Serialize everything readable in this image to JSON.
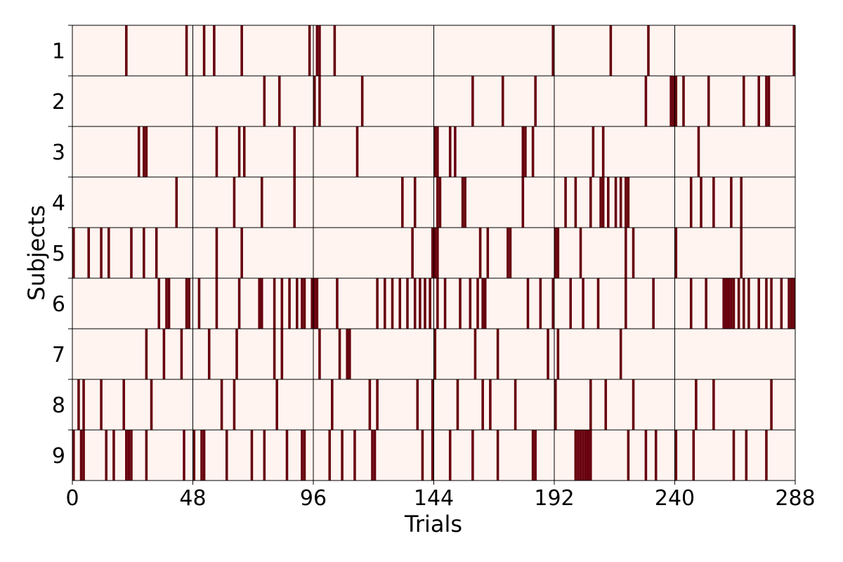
{
  "chart_data": {
    "type": "heatmap",
    "title": "",
    "xlabel": "Trials",
    "ylabel": "Subjects",
    "xlim": [
      0,
      288
    ],
    "x_ticks": [
      0,
      48,
      96,
      144,
      192,
      240,
      288
    ],
    "y_categories": [
      "1",
      "2",
      "3",
      "4",
      "5",
      "6",
      "7",
      "8",
      "9"
    ],
    "grid": "vertical lines every 48 trials, horizontal lines between subjects",
    "legend": "none",
    "colors": {
      "background": "#fff4f0",
      "event": "#67000d",
      "grid": "#000000"
    },
    "description": "Binary raster: each dark mark is a trial flagged for that subject.",
    "series": [
      {
        "row": "1",
        "trials": [
          21,
          45,
          52,
          56,
          67,
          94,
          97,
          98,
          104,
          191,
          214,
          229,
          287
        ]
      },
      {
        "row": "2",
        "trials": [
          76,
          82,
          96,
          98,
          115,
          159,
          171,
          184,
          228,
          238,
          239,
          240,
          243,
          253,
          267,
          273,
          276,
          277
        ]
      },
      {
        "row": "3",
        "trials": [
          26,
          28,
          29,
          57,
          66,
          68,
          88,
          113,
          144,
          145,
          150,
          152,
          179,
          180,
          183,
          207,
          211,
          249
        ]
      },
      {
        "row": "4",
        "trials": [
          41,
          64,
          75,
          88,
          131,
          136,
          145,
          146,
          155,
          156,
          179,
          196,
          200,
          206,
          210,
          211,
          213,
          216,
          218,
          220,
          221,
          246,
          250,
          255,
          262,
          266
        ]
      },
      {
        "row": "5",
        "trials": [
          0,
          6,
          11,
          14,
          23,
          28,
          33,
          57,
          67,
          135,
          143,
          144,
          145,
          162,
          165,
          173,
          174,
          192,
          193,
          202,
          220,
          223,
          240,
          266
        ]
      },
      {
        "row": "6",
        "trials": [
          34,
          37,
          38,
          45,
          46,
          50,
          57,
          66,
          74,
          75,
          80,
          83,
          86,
          89,
          91,
          92,
          95,
          96,
          97,
          105,
          121,
          124,
          127,
          130,
          133,
          136,
          138,
          140,
          142,
          145,
          148,
          154,
          158,
          161,
          163,
          164,
          181,
          186,
          191,
          198,
          203,
          209,
          220,
          231,
          246,
          252,
          259,
          260,
          261,
          262,
          263,
          265,
          267,
          269,
          273,
          276,
          278,
          282,
          285,
          286,
          287
        ]
      },
      {
        "row": "7",
        "trials": [
          29,
          36,
          43,
          54,
          65,
          80,
          83,
          98,
          106,
          109,
          110,
          144,
          160,
          169,
          189,
          193,
          218
        ]
      },
      {
        "row": "8",
        "trials": [
          2,
          4,
          11,
          20,
          31,
          59,
          64,
          81,
          103,
          118,
          121,
          137,
          143,
          153,
          163,
          166,
          176,
          192,
          206,
          212,
          223,
          248,
          255,
          278
        ]
      },
      {
        "row": "9",
        "trials": [
          0,
          3,
          4,
          13,
          16,
          21,
          22,
          23,
          29,
          44,
          48,
          51,
          52,
          61,
          71,
          76,
          85,
          91,
          92,
          102,
          107,
          112,
          119,
          120,
          139,
          143,
          150,
          159,
          169,
          183,
          184,
          200,
          201,
          202,
          203,
          204,
          205,
          206,
          221,
          228,
          232,
          240,
          247,
          263,
          268,
          276
        ]
      }
    ]
  }
}
